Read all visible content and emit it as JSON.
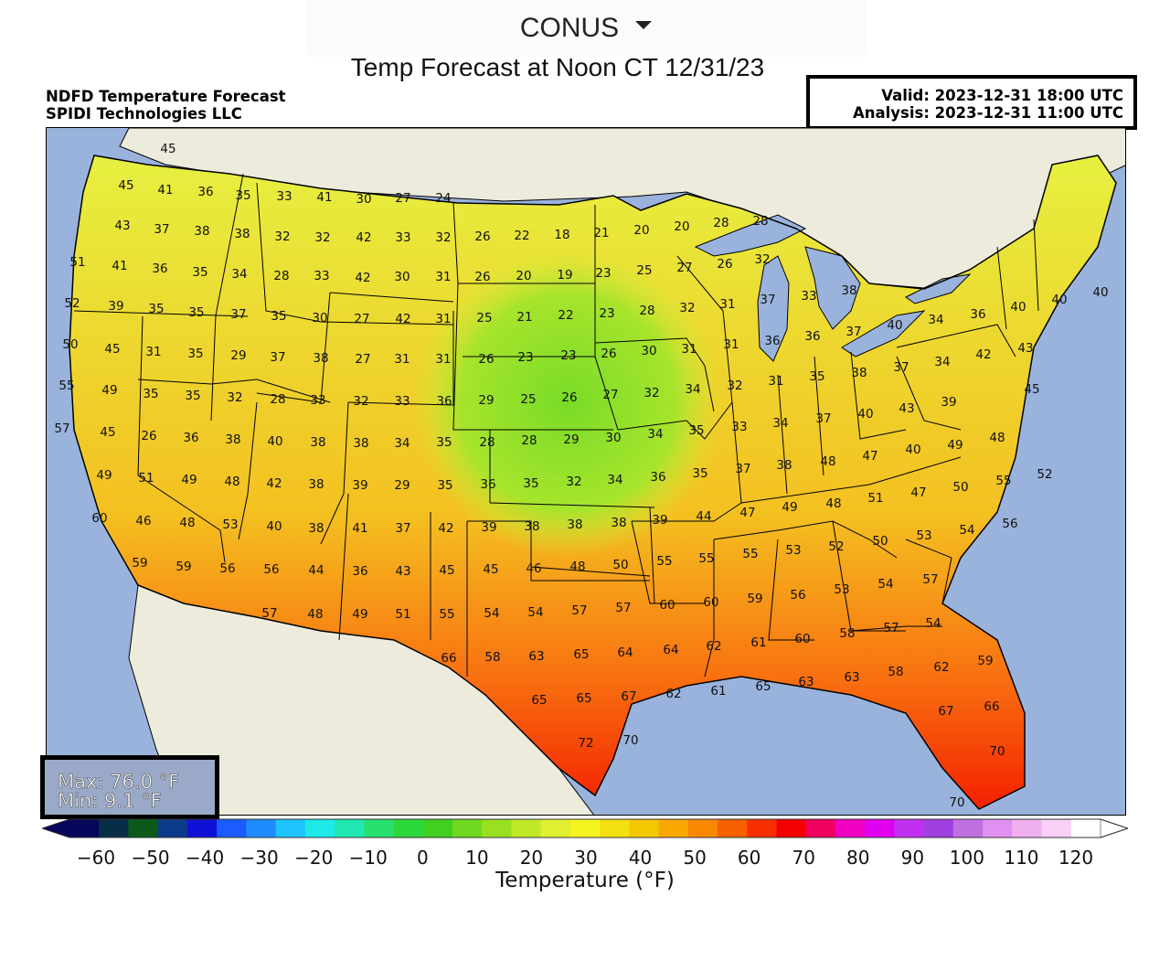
{
  "region_select": {
    "label": "CONUS"
  },
  "page_title": "Temp Forecast at Noon CT 12/31/23",
  "map_title": {
    "line1": "NDFD Temperature Forecast",
    "line2": "SPIDI Technologies LLC"
  },
  "valid_box": {
    "valid": "Valid: 2023-12-31 18:00 UTC",
    "analysis": "Analysis: 2023-12-31 11:00 UTC"
  },
  "max_min": {
    "max": "Max: 76.0 °F",
    "min": "Min: 9.1 °F"
  },
  "colorbar": {
    "label": "Temperature (°F)",
    "ticks": [
      "−60",
      "−50",
      "−40",
      "−30",
      "−20",
      "−10",
      "0",
      "10",
      "20",
      "30",
      "40",
      "50",
      "60",
      "70",
      "80",
      "90",
      "100",
      "110",
      "120"
    ],
    "colors": [
      "#06065a",
      "#082d48",
      "#0b5a1a",
      "#0d3b8c",
      "#1010d6",
      "#1a5cff",
      "#1e8cff",
      "#1fc4ff",
      "#1fe8e8",
      "#20e8b0",
      "#28e070",
      "#2cd83a",
      "#40d020",
      "#70d820",
      "#98e020",
      "#c0e828",
      "#e0f030",
      "#f4f420",
      "#f4e010",
      "#f4c800",
      "#f8a800",
      "#f88800",
      "#f86000",
      "#f83000",
      "#f40000",
      "#f00060",
      "#f000c0",
      "#e000f0",
      "#c030f0",
      "#a040e0",
      "#c070e0",
      "#e090f0",
      "#f0b0f0",
      "#f8d0f8",
      "#ffffff"
    ]
  },
  "legend_colors": {
    "ocean": "#9ab3dc",
    "land": "#ecebdc",
    "grid": "#000000"
  },
  "points": [
    [
      "45",
      183,
      161
    ],
    [
      "45",
      137,
      201
    ],
    [
      "41",
      180,
      206
    ],
    [
      "36",
      224,
      208
    ],
    [
      "35",
      265,
      212
    ],
    [
      "33",
      310,
      213
    ],
    [
      "41",
      354,
      214
    ],
    [
      "30",
      397,
      216
    ],
    [
      "27",
      440,
      215
    ],
    [
      "24",
      484,
      215
    ],
    [
      "43",
      133,
      245
    ],
    [
      "37",
      176,
      249
    ],
    [
      "38",
      220,
      251
    ],
    [
      "38",
      264,
      254
    ],
    [
      "32",
      308,
      257
    ],
    [
      "32",
      352,
      258
    ],
    [
      "42",
      397,
      258
    ],
    [
      "33",
      440,
      258
    ],
    [
      "32",
      484,
      258
    ],
    [
      "26",
      527,
      257
    ],
    [
      "22",
      570,
      256
    ],
    [
      "18",
      614,
      255
    ],
    [
      "21",
      657,
      253
    ],
    [
      "20",
      701,
      250
    ],
    [
      "20",
      745,
      246
    ],
    [
      "28",
      788,
      242
    ],
    [
      "28",
      831,
      240
    ],
    [
      "51",
      84,
      285
    ],
    [
      "41",
      130,
      289
    ],
    [
      "36",
      174,
      292
    ],
    [
      "35",
      218,
      296
    ],
    [
      "34",
      261,
      298
    ],
    [
      "28",
      307,
      300
    ],
    [
      "33",
      351,
      300
    ],
    [
      "42",
      396,
      302
    ],
    [
      "30",
      439,
      301
    ],
    [
      "31",
      484,
      301
    ],
    [
      "26",
      527,
      301
    ],
    [
      "20",
      572,
      300
    ],
    [
      "19",
      617,
      299
    ],
    [
      "23",
      659,
      297
    ],
    [
      "25",
      704,
      294
    ],
    [
      "27",
      748,
      291
    ],
    [
      "26",
      792,
      287
    ],
    [
      "32",
      833,
      282
    ],
    [
      "52",
      78,
      330
    ],
    [
      "39",
      126,
      333
    ],
    [
      "35",
      170,
      336
    ],
    [
      "35",
      214,
      340
    ],
    [
      "37",
      260,
      342
    ],
    [
      "35",
      304,
      344
    ],
    [
      "30",
      349,
      346
    ],
    [
      "27",
      395,
      347
    ],
    [
      "42",
      440,
      347
    ],
    [
      "31",
      484,
      347
    ],
    [
      "25",
      529,
      346
    ],
    [
      "21",
      573,
      345
    ],
    [
      "22",
      618,
      343
    ],
    [
      "23",
      663,
      341
    ],
    [
      "28",
      707,
      338
    ],
    [
      "32",
      751,
      335
    ],
    [
      "31",
      795,
      331
    ],
    [
      "37",
      839,
      326
    ],
    [
      "33",
      884,
      322
    ],
    [
      "38",
      928,
      316
    ],
    [
      "50",
      76,
      375
    ],
    [
      "45",
      122,
      380
    ],
    [
      "31",
      167,
      383
    ],
    [
      "35",
      213,
      385
    ],
    [
      "29",
      260,
      387
    ],
    [
      "37",
      303,
      389
    ],
    [
      "38",
      350,
      390
    ],
    [
      "27",
      396,
      391
    ],
    [
      "31",
      439,
      391
    ],
    [
      "31",
      484,
      391
    ],
    [
      "26",
      531,
      391
    ],
    [
      "23",
      574,
      389
    ],
    [
      "23",
      621,
      387
    ],
    [
      "26",
      665,
      385
    ],
    [
      "30",
      709,
      382
    ],
    [
      "31",
      753,
      380
    ],
    [
      "31",
      799,
      375
    ],
    [
      "36",
      844,
      371
    ],
    [
      "36",
      888,
      366
    ],
    [
      "37",
      933,
      361
    ],
    [
      "40",
      978,
      354
    ],
    [
      "34",
      1023,
      348
    ],
    [
      "36",
      1069,
      342
    ],
    [
      "40",
      1113,
      334
    ],
    [
      "40",
      1158,
      326
    ],
    [
      "40",
      1203,
      318
    ],
    [
      "55",
      72,
      420
    ],
    [
      "49",
      119,
      425
    ],
    [
      "35",
      164,
      429
    ],
    [
      "35",
      210,
      431
    ],
    [
      "32",
      256,
      433
    ],
    [
      "28",
      303,
      435
    ],
    [
      "33",
      347,
      436
    ],
    [
      "32",
      394,
      437
    ],
    [
      "33",
      439,
      437
    ],
    [
      "36",
      485,
      437
    ],
    [
      "29",
      531,
      436
    ],
    [
      "25",
      577,
      435
    ],
    [
      "26",
      622,
      433
    ],
    [
      "27",
      667,
      430
    ],
    [
      "32",
      712,
      428
    ],
    [
      "34",
      757,
      424
    ],
    [
      "32",
      803,
      420
    ],
    [
      "31",
      848,
      415
    ],
    [
      "35",
      893,
      410
    ],
    [
      "38",
      939,
      406
    ],
    [
      "37",
      985,
      400
    ],
    [
      "34",
      1030,
      394
    ],
    [
      "42",
      1075,
      386
    ],
    [
      "43",
      1121,
      379
    ],
    [
      "57",
      67,
      467
    ],
    [
      "45",
      117,
      471
    ],
    [
      "26",
      162,
      475
    ],
    [
      "36",
      208,
      477
    ],
    [
      "38",
      254,
      479
    ],
    [
      "40",
      300,
      481
    ],
    [
      "38",
      347,
      482
    ],
    [
      "38",
      394,
      483
    ],
    [
      "34",
      439,
      483
    ],
    [
      "35",
      485,
      482
    ],
    [
      "28",
      532,
      482
    ],
    [
      "28",
      578,
      480
    ],
    [
      "29",
      624,
      479
    ],
    [
      "30",
      670,
      477
    ],
    [
      "34",
      716,
      473
    ],
    [
      "35",
      761,
      469
    ],
    [
      "33",
      808,
      465
    ],
    [
      "34",
      853,
      461
    ],
    [
      "37",
      900,
      456
    ],
    [
      "40",
      946,
      451
    ],
    [
      "43",
      991,
      445
    ],
    [
      "39",
      1037,
      438
    ],
    [
      "45",
      1128,
      424
    ],
    [
      "49",
      113,
      518
    ],
    [
      "51",
      159,
      521
    ],
    [
      "49",
      206,
      523
    ],
    [
      "48",
      253,
      525
    ],
    [
      "42",
      299,
      527
    ],
    [
      "38",
      345,
      528
    ],
    [
      "39",
      393,
      529
    ],
    [
      "29",
      439,
      529
    ],
    [
      "35",
      486,
      529
    ],
    [
      "36",
      533,
      528
    ],
    [
      "35",
      580,
      527
    ],
    [
      "32",
      627,
      525
    ],
    [
      "34",
      672,
      523
    ],
    [
      "36",
      719,
      520
    ],
    [
      "35",
      765,
      516
    ],
    [
      "37",
      812,
      511
    ],
    [
      "38",
      857,
      507
    ],
    [
      "48",
      905,
      503
    ],
    [
      "47",
      951,
      497
    ],
    [
      "40",
      998,
      490
    ],
    [
      "49",
      1044,
      485
    ],
    [
      "48",
      1090,
      477
    ],
    [
      "52",
      1142,
      517
    ],
    [
      "60",
      108,
      565
    ],
    [
      "46",
      156,
      568
    ],
    [
      "48",
      204,
      570
    ],
    [
      "53",
      251,
      572
    ],
    [
      "40",
      299,
      574
    ],
    [
      "38",
      345,
      576
    ],
    [
      "41",
      393,
      576
    ],
    [
      "37",
      440,
      576
    ],
    [
      "42",
      487,
      576
    ],
    [
      "39",
      534,
      575
    ],
    [
      "38",
      581,
      574
    ],
    [
      "38",
      628,
      572
    ],
    [
      "38",
      676,
      570
    ],
    [
      "39",
      721,
      567
    ],
    [
      "44",
      769,
      563
    ],
    [
      "47",
      817,
      559
    ],
    [
      "49",
      863,
      553
    ],
    [
      "48",
      911,
      549
    ],
    [
      "51",
      957,
      543
    ],
    [
      "47",
      1004,
      537
    ],
    [
      "50",
      1050,
      531
    ],
    [
      "55",
      1097,
      524
    ],
    [
      "59",
      152,
      614
    ],
    [
      "59",
      200,
      618
    ],
    [
      "56",
      248,
      620
    ],
    [
      "56",
      296,
      621
    ],
    [
      "44",
      345,
      622
    ],
    [
      "36",
      393,
      623
    ],
    [
      "43",
      440,
      623
    ],
    [
      "45",
      488,
      622
    ],
    [
      "45",
      536,
      621
    ],
    [
      "46",
      583,
      620
    ],
    [
      "48",
      631,
      618
    ],
    [
      "50",
      678,
      616
    ],
    [
      "55",
      726,
      612
    ],
    [
      "55",
      772,
      609
    ],
    [
      "55",
      820,
      604
    ],
    [
      "53",
      867,
      600
    ],
    [
      "52",
      914,
      596
    ],
    [
      "50",
      962,
      590
    ],
    [
      "53",
      1010,
      584
    ],
    [
      "54",
      1057,
      578
    ],
    [
      "56",
      1104,
      571
    ],
    [
      "57",
      294,
      669
    ],
    [
      "48",
      344,
      670
    ],
    [
      "49",
      393,
      670
    ],
    [
      "51",
      440,
      670
    ],
    [
      "55",
      488,
      670
    ],
    [
      "54",
      537,
      669
    ],
    [
      "54",
      585,
      668
    ],
    [
      "57",
      633,
      666
    ],
    [
      "57",
      681,
      663
    ],
    [
      "60",
      729,
      660
    ],
    [
      "60",
      777,
      657
    ],
    [
      "59",
      825,
      653
    ],
    [
      "56",
      872,
      649
    ],
    [
      "53",
      920,
      643
    ],
    [
      "54",
      968,
      637
    ],
    [
      "57",
      1017,
      632
    ],
    [
      "66",
      490,
      718
    ],
    [
      "58",
      538,
      717
    ],
    [
      "63",
      586,
      716
    ],
    [
      "65",
      635,
      714
    ],
    [
      "64",
      683,
      712
    ],
    [
      "64",
      733,
      709
    ],
    [
      "62",
      780,
      705
    ],
    [
      "61",
      829,
      701
    ],
    [
      "60",
      877,
      697
    ],
    [
      "58",
      926,
      691
    ],
    [
      "57",
      974,
      685
    ],
    [
      "54",
      1020,
      680
    ],
    [
      "65",
      589,
      764
    ],
    [
      "65",
      638,
      762
    ],
    [
      "67",
      687,
      760
    ],
    [
      "62",
      736,
      757
    ],
    [
      "61",
      785,
      754
    ],
    [
      "65",
      834,
      749
    ],
    [
      "63",
      881,
      744
    ],
    [
      "63",
      931,
      739
    ],
    [
      "58",
      979,
      733
    ],
    [
      "62",
      1029,
      728
    ],
    [
      "59",
      1077,
      721
    ],
    [
      "72",
      640,
      811
    ],
    [
      "70",
      689,
      808
    ],
    [
      "67",
      1034,
      776
    ],
    [
      "66",
      1084,
      771
    ],
    [
      "70",
      1090,
      820
    ],
    [
      "70",
      1046,
      876
    ]
  ]
}
